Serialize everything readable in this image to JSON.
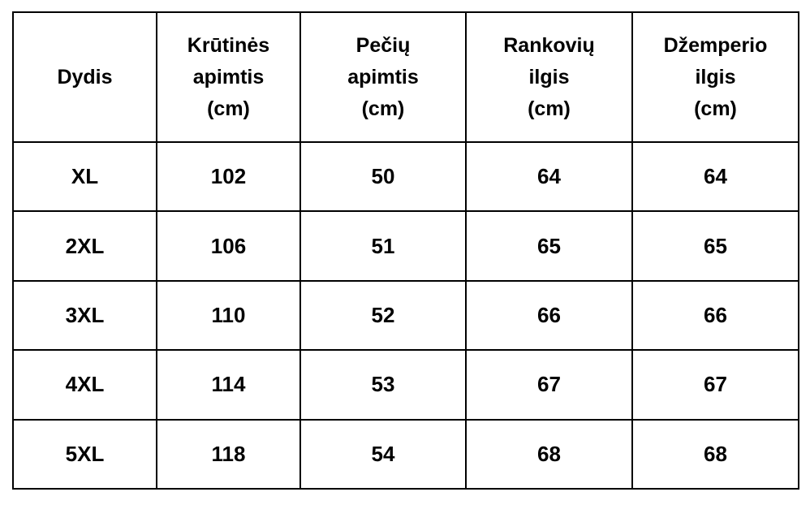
{
  "headers": [
    [
      "Dydis"
    ],
    [
      "Krūtinės",
      "apimtis",
      "(cm)"
    ],
    [
      "Pečių",
      "apimtis",
      "(cm)"
    ],
    [
      "Rankovių",
      "ilgis",
      "(cm)"
    ],
    [
      "Džemperio",
      "ilgis",
      "(cm)"
    ]
  ],
  "rows": [
    [
      "XL",
      "102",
      "50",
      "64",
      "64"
    ],
    [
      "2XL",
      "106",
      "51",
      "65",
      "65"
    ],
    [
      "3XL",
      "110",
      "52",
      "66",
      "66"
    ],
    [
      "4XL",
      "114",
      "53",
      "67",
      "67"
    ],
    [
      "5XL",
      "118",
      "54",
      "68",
      "68"
    ]
  ]
}
